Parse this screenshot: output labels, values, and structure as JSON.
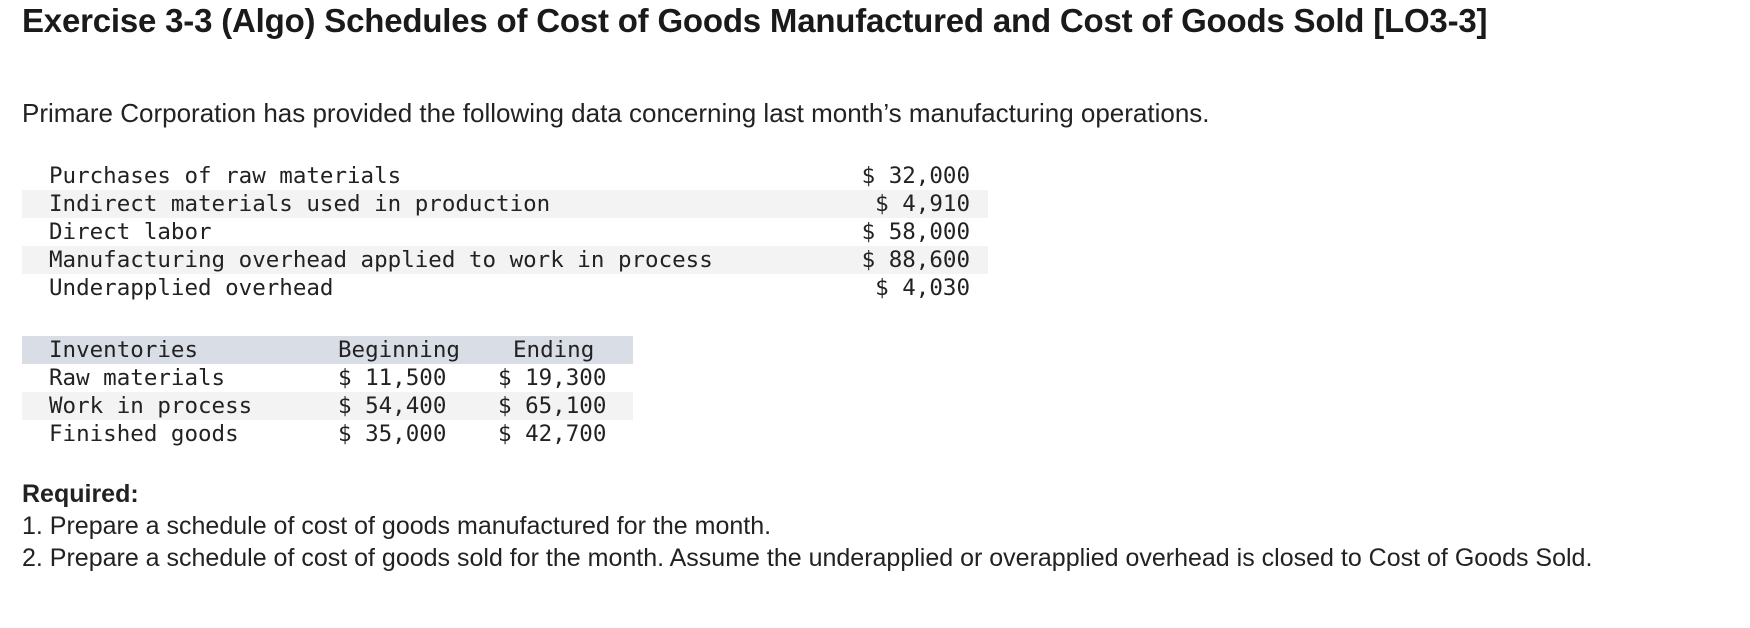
{
  "title": "Exercise 3-3 (Algo) Schedules of Cost of Goods Manufactured and Cost of Goods Sold [LO3-3]",
  "intro": "Primare Corporation has provided the following data concerning last month’s manufacturing operations.",
  "data_table": [
    {
      "label": "Purchases of raw materials",
      "value": "$ 32,000"
    },
    {
      "label": "Indirect materials used in production",
      "value": "$ 4,910"
    },
    {
      "label": "Direct labor",
      "value": "$ 58,000"
    },
    {
      "label": "Manufacturing overhead applied to work in process",
      "value": "$ 88,600"
    },
    {
      "label": "Underapplied overhead",
      "value": "$ 4,030"
    }
  ],
  "inventory_table": {
    "headers": [
      "Inventories",
      "Beginning",
      "Ending"
    ],
    "rows": [
      {
        "name": "Raw materials",
        "beginning": "$ 11,500",
        "ending": "$ 19,300"
      },
      {
        "name": "Work in process",
        "beginning": "$ 54,400",
        "ending": "$ 65,100"
      },
      {
        "name": "Finished goods",
        "beginning": "$ 35,000",
        "ending": "$ 42,700"
      }
    ]
  },
  "required": {
    "heading": "Required:",
    "items": [
      "1. Prepare a schedule of cost of goods manufactured for the month.",
      "2. Prepare a schedule of cost of goods sold for the month. Assume the underapplied or overapplied overhead is closed to Cost of Goods Sold."
    ]
  }
}
